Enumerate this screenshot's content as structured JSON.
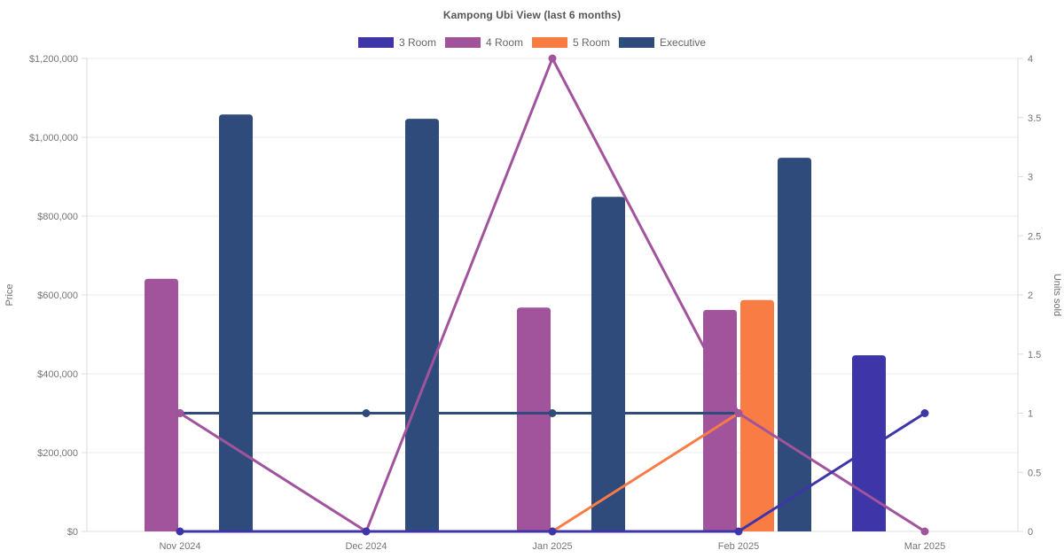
{
  "title": "Kampong Ubi View (last 6 months)",
  "axes": {
    "left_label": "Price",
    "right_label": "Units sold",
    "left_ticks": [
      "$0",
      "$200,000",
      "$400,000",
      "$600,000",
      "$800,000",
      "$1,000,000",
      "$1,200,000"
    ],
    "left_tick_values": [
      0,
      200000,
      400000,
      600000,
      800000,
      1000000,
      1200000
    ],
    "right_ticks": [
      "0",
      "0.5",
      "1",
      "1.5",
      "2",
      "2.5",
      "3",
      "3.5",
      "4"
    ],
    "right_tick_values": [
      0,
      0.5,
      1,
      1.5,
      2,
      2.5,
      3,
      3.5,
      4
    ],
    "left_range": [
      0,
      1200000
    ],
    "right_range": [
      0,
      4
    ],
    "grid": "horizontal, aligned to left-axis ticks"
  },
  "chart_data": {
    "type": "bar+line combo (bars = Price on left axis, lines with dot markers = Units sold on right axis)",
    "title": "Kampong Ubi View (last 6 months)",
    "categories": [
      "Nov 2024",
      "Dec 2024",
      "Jan 2025",
      "Feb 2025",
      "Mar 2025"
    ],
    "legend_position": "top center",
    "series": [
      {
        "name": "3 Room",
        "color": "#3d35a8",
        "bar_prices": [
          null,
          null,
          null,
          null,
          447000
        ],
        "line_units": [
          0,
          0,
          0,
          0,
          1
        ]
      },
      {
        "name": "4 Room",
        "color": "#a1539c",
        "bar_prices": [
          641000,
          null,
          568000,
          562000,
          null
        ],
        "line_units": [
          1,
          0,
          4,
          1,
          0
        ]
      },
      {
        "name": "5 Room",
        "color": "#f97c45",
        "bar_prices": [
          null,
          null,
          null,
          587000,
          null
        ],
        "line_units": [
          null,
          null,
          0,
          1,
          null
        ]
      },
      {
        "name": "Executive",
        "color": "#2f4b7c",
        "bar_prices": [
          1058000,
          1047000,
          849000,
          948000,
          null
        ],
        "line_units": [
          1,
          1,
          1,
          1,
          null
        ]
      }
    ],
    "xlabel": "",
    "ylabel_left": "Price",
    "ylabel_right": "Units sold",
    "ylim_left": [
      0,
      1200000
    ],
    "ylim_right": [
      0,
      4
    ]
  },
  "colors": {
    "grid_line": "#ebebeb",
    "axis_border": "#dcdcdc",
    "tick_text": "#757575",
    "title_text": "#565656",
    "legend_text": "#666666",
    "background": "#ffffff"
  }
}
